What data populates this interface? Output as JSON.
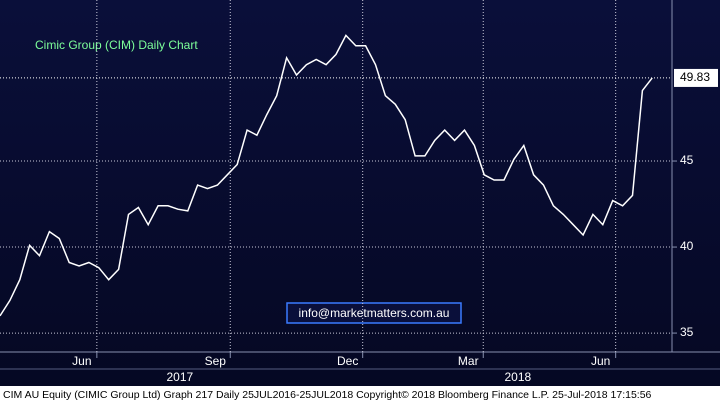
{
  "chart_data": {
    "type": "line",
    "title": "Cimic Group (CIM) Daily Chart",
    "annotation": "info@marketmatters.com.au",
    "footer": "CIM AU Equity (CIMIC Group Ltd) Graph 217  Daily 25JUL2016-25JUL2018  Copyright© 2018 Bloomberg Finance L.P.  25-Jul-2018 17:15:56",
    "x": [
      0,
      1,
      2,
      3,
      4,
      5,
      6,
      7,
      8,
      9,
      10,
      11,
      12,
      13,
      14,
      15,
      16,
      17,
      18,
      19,
      20,
      21,
      22,
      23,
      24,
      25,
      26,
      27,
      28,
      29,
      30,
      31,
      32,
      33,
      34,
      35,
      36,
      37,
      38,
      39,
      40,
      41,
      42,
      43,
      44,
      45,
      46,
      47,
      48,
      49,
      50,
      51,
      52,
      53,
      54,
      55,
      56,
      57,
      58,
      59,
      60,
      61,
      62,
      63,
      64,
      65,
      66
    ],
    "series": [
      {
        "color": "#ffffff",
        "values": [
          36.0,
          36.9,
          38.1,
          40.1,
          39.5,
          40.9,
          40.5,
          39.1,
          38.9,
          39.1,
          38.8,
          38.1,
          38.7,
          41.9,
          42.3,
          41.3,
          42.4,
          42.4,
          42.2,
          42.1,
          43.6,
          43.4,
          43.6,
          44.2,
          44.8,
          46.8,
          46.5,
          47.7,
          48.8,
          51.0,
          50.0,
          50.6,
          50.9,
          50.6,
          51.2,
          52.3,
          51.7,
          51.7,
          50.6,
          48.8,
          48.3,
          47.4,
          45.3,
          45.3,
          46.2,
          46.8,
          46.2,
          46.8,
          45.9,
          44.2,
          43.9,
          43.9,
          45.1,
          45.9,
          44.2,
          43.6,
          42.4,
          41.9,
          41.3,
          40.7,
          41.9,
          41.3,
          42.7,
          42.4,
          43.0,
          49.1,
          49.83
        ]
      }
    ],
    "last_price": 49.83,
    "xlim": [
      0,
      68
    ],
    "xticks": [
      {
        "value": 9.8,
        "label": "Jun"
      },
      {
        "value": 23.3,
        "label": "Sep"
      },
      {
        "value": 36.7,
        "label": "Dec"
      },
      {
        "value": 48.9,
        "label": "Mar"
      },
      {
        "value": 62.3,
        "label": "Jun"
      }
    ],
    "year_labels": [
      {
        "value": 18.2,
        "label": "2017"
      },
      {
        "value": 52.4,
        "label": "2018"
      }
    ],
    "ylim": [
      33.9,
      54.36
    ],
    "yticks": [
      35,
      40,
      45
    ],
    "grid": true
  }
}
